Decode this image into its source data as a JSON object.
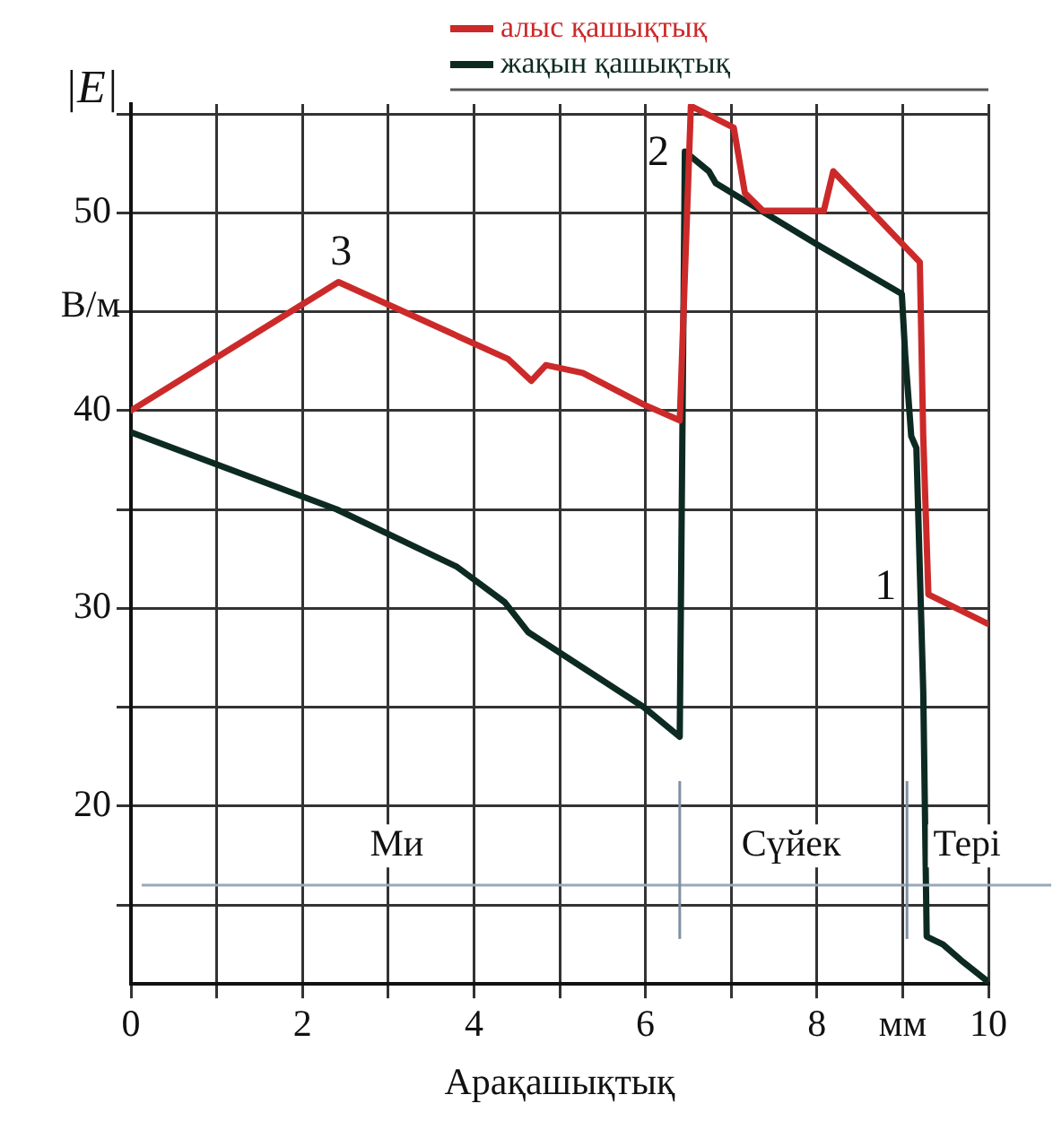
{
  "chart_data": {
    "type": "line",
    "xlabel": "Арақашықтық",
    "ylabel": "|E|",
    "xlim": [
      0,
      10
    ],
    "ylim": [
      11,
      55.5
    ],
    "xticks": [
      0,
      {
        "value": 1,
        "label": null
      },
      2,
      {
        "value": 3,
        "label": null
      },
      4,
      {
        "value": 5,
        "label": null
      },
      6,
      {
        "value": 7,
        "label": null
      },
      8,
      {
        "value": 9,
        "label": "мм"
      },
      10
    ],
    "yticks": [
      {
        "value": 15,
        "label": null
      },
      20,
      {
        "value": 25,
        "label": null
      },
      30,
      {
        "value": 35,
        "label": null
      },
      40,
      {
        "value": 45,
        "label": null
      },
      50,
      {
        "value": 55,
        "label": null
      }
    ],
    "grid": true,
    "legend": "top right",
    "marker": "none",
    "line_style": "solid",
    "series": [
      {
        "name": "алыс қашықтық",
        "color": "#cc2a2a",
        "x": [
          0,
          2.42,
          4.4,
          4.67,
          4.84,
          5.27,
          5.98,
          6.4,
          6.53,
          7.03,
          7.16,
          7.37,
          8.08,
          8.19,
          9.2,
          9.24,
          9.3,
          10
        ],
        "values": [
          40,
          46.5,
          42.6,
          41.5,
          42.3,
          41.9,
          40.3,
          39.5,
          55.4,
          54.3,
          51,
          50.1,
          50.1,
          52.1,
          47.5,
          38.7,
          30.7,
          29.2
        ]
      },
      {
        "name": "жақын қашықтық",
        "color": "#0d2a22",
        "x": [
          0,
          2.4,
          3.8,
          4.36,
          4.63,
          5.98,
          6.4,
          6.46,
          6.74,
          6.82,
          8,
          8.99,
          9.03,
          9.1,
          9.16,
          9.24,
          9.28,
          9.47,
          9.68,
          10
        ],
        "values": [
          38.9,
          35,
          32.1,
          30.3,
          28.8,
          25,
          23.5,
          53.1,
          52.1,
          51.5,
          48.4,
          45.9,
          42.8,
          38.7,
          38.1,
          25.8,
          13.4,
          13,
          12.2,
          11.1
        ]
      }
    ],
    "ref_lines": [
      {
        "axis": "y",
        "value": 16,
        "color": "#9aa8b8"
      },
      {
        "axis": "x",
        "value": 6.4,
        "color": "#7f90a4"
      },
      {
        "axis": "x",
        "value": 9.05,
        "color": "#7f90a4"
      }
    ],
    "annotations": [
      "В/м",
      "3",
      "2",
      "1",
      "Ми",
      "Сүйек",
      "Тері"
    ]
  }
}
